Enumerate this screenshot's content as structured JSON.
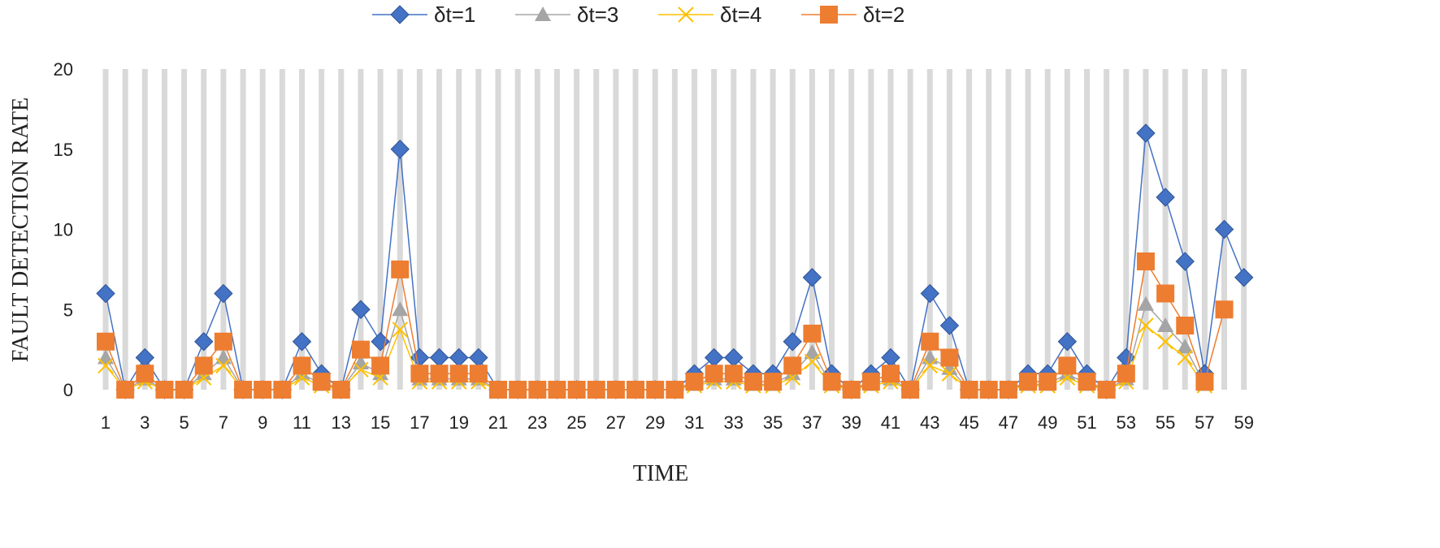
{
  "chart_data": {
    "type": "line",
    "xlabel": "TIME",
    "ylabel": "FAULT DETECTION RATE",
    "ylim": [
      0,
      20
    ],
    "yticks": [
      "0",
      "5",
      "10",
      "15",
      "20"
    ],
    "x": [
      1,
      2,
      3,
      4,
      5,
      6,
      7,
      8,
      9,
      10,
      11,
      12,
      13,
      14,
      15,
      16,
      17,
      18,
      19,
      20,
      21,
      22,
      23,
      24,
      25,
      26,
      27,
      28,
      29,
      30,
      31,
      32,
      33,
      34,
      35,
      36,
      37,
      38,
      39,
      40,
      41,
      42,
      43,
      44,
      45,
      46,
      47,
      48,
      49,
      50,
      51,
      52,
      53,
      54,
      55,
      56,
      57,
      58,
      59
    ],
    "xticks": [
      "1",
      "3",
      "5",
      "7",
      "9",
      "11",
      "13",
      "15",
      "17",
      "19",
      "21",
      "23",
      "25",
      "27",
      "29",
      "31",
      "33",
      "35",
      "37",
      "39",
      "41",
      "43",
      "45",
      "47",
      "49",
      "51",
      "53",
      "55",
      "57",
      "59"
    ],
    "grid": "vertical",
    "legend_position": "top",
    "series": [
      {
        "name": "δt=1",
        "color": "#4472C4",
        "marker": "diamond",
        "values": [
          6,
          0,
          2,
          0,
          0,
          3,
          6,
          0,
          0,
          0,
          3,
          1,
          0,
          5,
          3,
          15,
          2,
          2,
          2,
          2,
          0,
          0,
          0,
          0,
          0,
          0,
          0,
          0,
          0,
          0,
          1,
          2,
          2,
          1,
          1,
          3,
          7,
          1,
          0,
          1,
          2,
          0,
          6,
          4,
          0,
          0,
          0,
          1,
          1,
          3,
          1,
          0,
          2,
          16,
          12,
          8,
          1,
          10,
          7
        ]
      },
      {
        "name": "δt=3",
        "color": "#A5A5A5",
        "marker": "triangle",
        "values": [
          2,
          0,
          0.67,
          0,
          0,
          1,
          2,
          0,
          0,
          0,
          1,
          0.33,
          0,
          1.67,
          1,
          5,
          0.67,
          0.67,
          0.67,
          0.67,
          0,
          0,
          0,
          0,
          0,
          0,
          0,
          0,
          0,
          0,
          0.33,
          0.67,
          0.67,
          0.33,
          0.33,
          1,
          2.33,
          0.33,
          0,
          0.33,
          0.67,
          0,
          2,
          1.33,
          0,
          0,
          0,
          0.33,
          0.33,
          1,
          0.33,
          0,
          0.67,
          5.33,
          4,
          2.67,
          0.33,
          null,
          null
        ]
      },
      {
        "name": "δt=4",
        "color": "#FFC000",
        "marker": "x",
        "values": [
          1.5,
          0,
          0.5,
          0,
          0,
          0.75,
          1.5,
          0,
          0,
          0,
          0.75,
          0.25,
          0,
          1.25,
          0.75,
          3.75,
          0.5,
          0.5,
          0.5,
          0.5,
          0,
          0,
          0,
          0,
          0,
          0,
          0,
          0,
          0,
          0,
          0.25,
          0.5,
          0.5,
          0.25,
          0.25,
          0.75,
          1.75,
          0.25,
          0,
          0.25,
          0.5,
          0,
          1.5,
          1,
          0,
          0,
          0,
          0.25,
          0.25,
          0.75,
          0.25,
          0,
          0.5,
          4,
          3,
          2,
          0.25,
          null,
          null
        ]
      },
      {
        "name": "δt=2",
        "color": "#ED7D31",
        "marker": "square",
        "values": [
          3,
          0,
          1,
          0,
          0,
          1.5,
          3,
          0,
          0,
          0,
          1.5,
          0.5,
          0,
          2.5,
          1.5,
          7.5,
          1,
          1,
          1,
          1,
          0,
          0,
          0,
          0,
          0,
          0,
          0,
          0,
          0,
          0,
          0.5,
          1,
          1,
          0.5,
          0.5,
          1.5,
          3.5,
          0.5,
          0,
          0.5,
          1,
          0,
          3,
          2,
          0,
          0,
          0,
          0.5,
          0.5,
          1.5,
          0.5,
          0,
          1,
          8,
          6,
          4,
          0.5,
          5,
          null
        ]
      }
    ]
  }
}
